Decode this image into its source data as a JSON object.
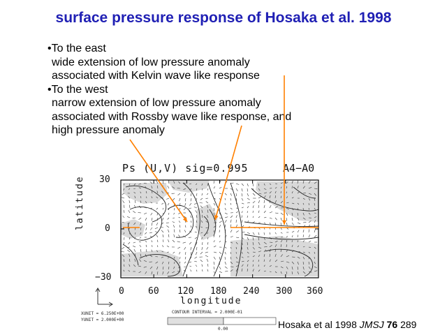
{
  "title": "surface pressure response of Hosaka et al. 1998",
  "bullets": [
    "•To the east",
    "wide extension of low pressure anomaly",
    "associated with Kelvin wave like response",
    "•To the west",
    "narrow extension of low pressure anomaly",
    "associated with Rossby wave like response, and",
    "high pressure anomaly"
  ],
  "plot": {
    "title": "Ps (U,V) sig=0.995",
    "tag": "A4−A0",
    "ylabel": "latitude",
    "xlabel": "longitude",
    "yticks": [
      "30",
      "0",
      "−30"
    ],
    "xticks": [
      "0",
      "60",
      "120",
      "180",
      "240",
      "300",
      "360"
    ],
    "xunit": "XUNIT = 6.250E+00",
    "yunit": "YUNIT = 2.000E+00",
    "contour_interval": "CONTOUR INTERVAL = 2.000E-01",
    "scale_value": "0.00",
    "arrow_color": "#ff8000",
    "shade_color": "#d9d9d9"
  },
  "citation": {
    "prefix": "Hosaka et al 1998",
    "journal": "JMSJ",
    "volume": "76",
    "page": "289"
  }
}
